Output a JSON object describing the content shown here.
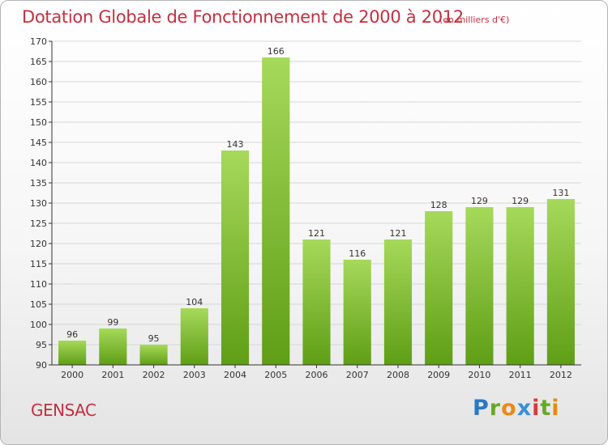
{
  "header": {
    "title": "Dotation Globale de Fonctionnement de 2000 à 2012",
    "unit": "(en milliers d'€)"
  },
  "footer": {
    "commune": "GENSAC",
    "brand": "Proxiti"
  },
  "colors": {
    "bar_light": "#a6d95a",
    "bar_dark": "#5f9e16",
    "title": "#c03040",
    "grid": "#d6d6d6"
  },
  "chart_data": {
    "type": "bar",
    "title": "Dotation Globale de Fonctionnement de 2000 à 2012",
    "subtitle": "(en milliers d'€)",
    "xlabel": "",
    "ylabel": "",
    "ylim": [
      90,
      170
    ],
    "ytick_step": 5,
    "grid": true,
    "categories": [
      "2000",
      "2001",
      "2002",
      "2003",
      "2004",
      "2005",
      "2006",
      "2007",
      "2008",
      "2009",
      "2010",
      "2011",
      "2012"
    ],
    "values": [
      96,
      99,
      95,
      104,
      143,
      166,
      121,
      116,
      121,
      128,
      129,
      129,
      131
    ]
  }
}
